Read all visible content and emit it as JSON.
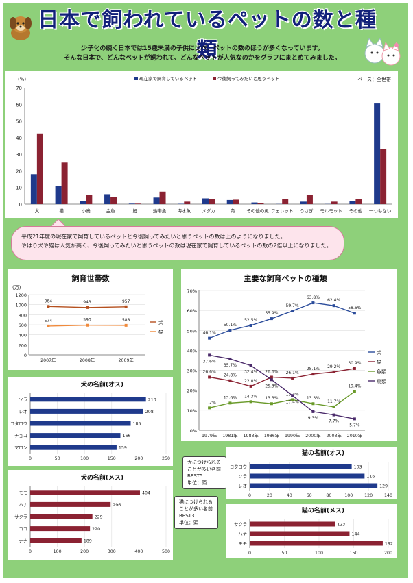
{
  "header": {
    "title": "日本で飼われているペットの数と種類",
    "intro_line1": "少子化の続く日本では15歳未満の子供に比べ、ペットの数のほうが多くなっています。",
    "intro_line2": "そんな日本で、どんなペットが飼われて、どんなペットが人気なのかをグラフにまとめてみました。"
  },
  "callout": {
    "line1": "平成21年度の現在家で飼育しているペットと今後飼ってみたいと思うペットの数は上のようになりました。",
    "line2": "やはり犬や猫は人気が高く、今後飼ってみたいと思うペットの数は現在家で飼育しているペットの数の2倍以上になりました。"
  },
  "notes": {
    "dog_note": [
      "犬につけられる",
      "ことが多い名前",
      "BEST5",
      "単位：頭"
    ],
    "cat_note": [
      "猫につけられる",
      "ことが多い名前",
      "BEST3",
      "単位：頭"
    ]
  },
  "colors": {
    "navy": "#1f3a8c",
    "maroon": "#8b2232",
    "dog_line": "#b5501e",
    "cat_line": "#f08a3c",
    "green": "#6a9a2a",
    "purple": "#4a2a6a",
    "blue": "#2b4c9b"
  },
  "chart_data": [
    {
      "id": "pets_main",
      "type": "bar",
      "unit_label": "(%)",
      "base_label": "ベース：全世帯",
      "categories": [
        "犬",
        "猫",
        "小鳥",
        "金魚",
        "鯉",
        "熱帯魚",
        "海水魚",
        "メダカ",
        "亀",
        "その他の魚",
        "フェレット",
        "うさぎ",
        "モルモット",
        "その他",
        "一つもない"
      ],
      "series": [
        {
          "name": "現在家で飼育しているペット",
          "color": "#1f3a8c",
          "values": [
            18,
            11,
            2,
            6,
            0.3,
            4,
            0.2,
            3.5,
            2.5,
            1,
            0.1,
            1.5,
            0.1,
            2,
            60.5
          ]
        },
        {
          "name": "今後飼ってみたいと思うペット",
          "color": "#8b2232",
          "values": [
            42.5,
            25,
            5.5,
            4.5,
            0.3,
            7.5,
            1.5,
            3.2,
            2.7,
            0.8,
            3,
            5.5,
            1.5,
            3,
            33
          ]
        }
      ],
      "ylim": [
        0,
        70
      ],
      "yticks": [
        0,
        10,
        20,
        30,
        40,
        50,
        60,
        70
      ]
    },
    {
      "id": "households",
      "type": "line",
      "title": "飼育世帯数",
      "unit_label": "(万)",
      "categories": [
        "2007年",
        "2008年",
        "2009年"
      ],
      "series": [
        {
          "name": "犬",
          "color": "#b5501e",
          "values": [
            964,
            943,
            957
          ],
          "labels": [
            "964",
            "943",
            "957"
          ]
        },
        {
          "name": "猫",
          "color": "#f08a3c",
          "values": [
            574,
            590,
            588
          ],
          "labels": [
            "574",
            "590",
            "588"
          ]
        }
      ],
      "ylim": [
        0,
        1200
      ],
      "yticks": [
        0,
        200,
        400,
        600,
        800,
        1000,
        1200
      ]
    },
    {
      "id": "kinds",
      "type": "line",
      "title": "主要な飼育ペットの種類",
      "categories": [
        "1979年",
        "1981年",
        "1983年",
        "1986年",
        "1990年",
        "2000年",
        "2003年",
        "2010年"
      ],
      "series": [
        {
          "name": "犬",
          "color": "#2b4c9b",
          "values": [
            46.1,
            50.1,
            52.5,
            55.9,
            59.7,
            63.8,
            62.4,
            58.6
          ],
          "labels": [
            "46.1%",
            "50.1%",
            "52.5%",
            "55.9%",
            "59.7%",
            "63.8%",
            "62.4%",
            "58.6%"
          ]
        },
        {
          "name": "猫",
          "color": "#8b2232",
          "values": [
            26.6,
            24.8,
            22.0,
            26.6,
            26.1,
            28.1,
            29.2,
            30.9
          ],
          "labels": [
            "26.6%",
            "24.8%",
            "22.0%",
            "26.6%",
            "26.1%",
            "28.1%",
            "29.2%",
            "30.9%"
          ]
        },
        {
          "name": "魚類",
          "color": "#6a9a2a",
          "values": [
            11.2,
            13.6,
            14.3,
            13.3,
            15.3,
            13.3,
            11.7,
            19.4
          ],
          "labels": [
            "11.2%",
            "13.6%",
            "14.3%",
            "13.3%",
            "15.3%",
            "13.3%",
            "11.7%",
            "19.4%"
          ]
        },
        {
          "name": "鳥類",
          "color": "#4a2a6a",
          "values": [
            37.6,
            35.7,
            32.4,
            25.3,
            17.4,
            9.3,
            7.7,
            5.7
          ],
          "labels": [
            "37.6%",
            "35.7%",
            "32.4%",
            "25.3%",
            "17.4%",
            "9.3%",
            "7.7%",
            "5.7%"
          ]
        }
      ],
      "ylim": [
        0,
        70
      ],
      "yticks": [
        "0%",
        "10%",
        "20%",
        "30%",
        "40%",
        "50%",
        "60%",
        "70%"
      ]
    },
    {
      "id": "dog_male",
      "type": "bar",
      "orientation": "horizontal",
      "title": "犬の名前(オス)",
      "categories": [
        "ソラ",
        "レオ",
        "コタロウ",
        "チョコ",
        "マロン"
      ],
      "values": [
        213,
        208,
        185,
        166,
        159
      ],
      "color": "#1f3a8c",
      "xlim": [
        0,
        250
      ],
      "xticks": [
        0,
        50,
        100,
        150,
        200,
        250
      ]
    },
    {
      "id": "dog_female",
      "type": "bar",
      "orientation": "horizontal",
      "title": "犬の名前(メス)",
      "categories": [
        "モモ",
        "ハナ",
        "サクラ",
        "ココ",
        "ナナ"
      ],
      "values": [
        404,
        296,
        229,
        220,
        189
      ],
      "color": "#8b2232",
      "xlim": [
        0,
        500
      ],
      "xticks": [
        0,
        100,
        200,
        300,
        400,
        500
      ]
    },
    {
      "id": "cat_male",
      "type": "bar",
      "orientation": "horizontal",
      "title": "猫の名前(オス)",
      "categories": [
        "コタロウ",
        "ソラ",
        "レオ"
      ],
      "values": [
        103,
        116,
        129
      ],
      "color": "#1f3a8c",
      "xlim": [
        0,
        140
      ],
      "xticks": [
        0,
        20,
        40,
        60,
        80,
        100,
        120,
        140
      ]
    },
    {
      "id": "cat_female",
      "type": "bar",
      "orientation": "horizontal",
      "title": "猫の名前(メス)",
      "categories": [
        "サクラ",
        "ハナ",
        "モモ"
      ],
      "values": [
        123,
        144,
        192
      ],
      "color": "#8b2232",
      "xlim": [
        0,
        200
      ],
      "xticks": [
        0,
        50,
        100,
        150,
        200
      ]
    }
  ]
}
